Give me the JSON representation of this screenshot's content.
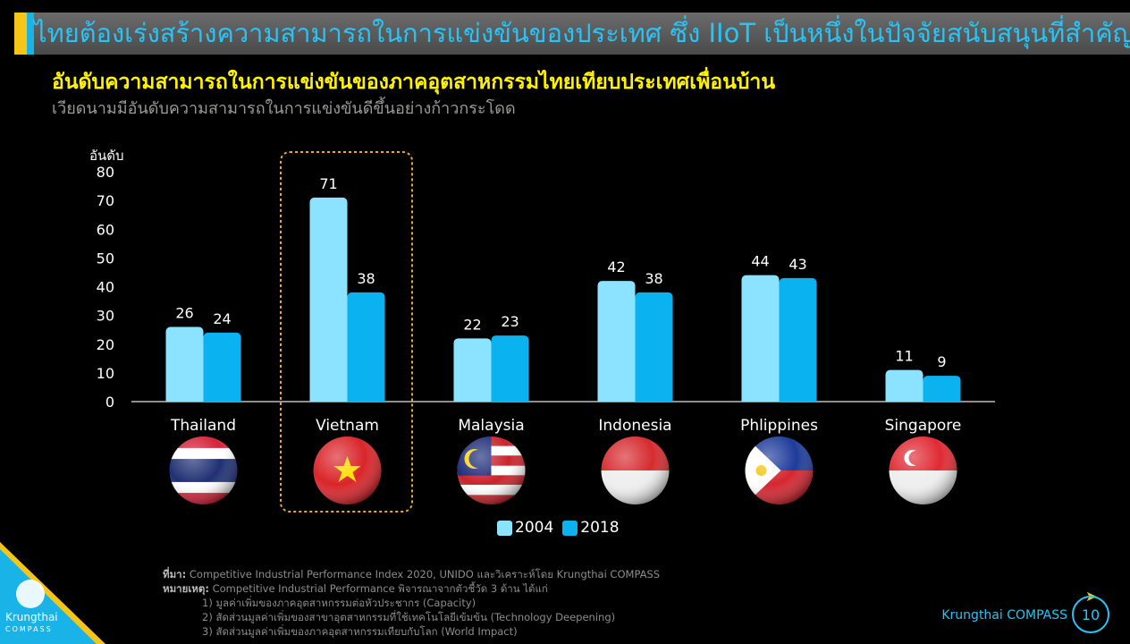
{
  "header": {
    "title": "ไทยต้องเร่งสร้างความสามารถในการแข่งขันของประเทศ ซึ่ง IIoT เป็นหนึ่งในปัจจัยสนับสนุนที่สำคัญ",
    "subtitle": "อันดับความสามารถในการแข่งขันของภาคอุตสาหกรรมไทยเทียบประเทศเพื่อนบ้าน",
    "subtitle2": "เวียดนามมีอันดับความสามารถในการแข่งขันดีขึ้นอย่างก้าวกระโดด"
  },
  "chart_data": {
    "type": "bar",
    "ylabel": "อันดับ",
    "ylim": [
      0,
      80
    ],
    "yticks": [
      0,
      10,
      20,
      30,
      40,
      50,
      60,
      70,
      80
    ],
    "categories": [
      "Thailand",
      "Vietnam",
      "Malaysia",
      "Indonesia",
      "Phlippines",
      "Singapore"
    ],
    "series": [
      {
        "name": "2004",
        "values": [
          26,
          71,
          22,
          42,
          44,
          11
        ],
        "color": "#8be3ff"
      },
      {
        "name": "2018",
        "values": [
          24,
          38,
          23,
          38,
          43,
          9
        ],
        "color": "#0ab2ef"
      }
    ],
    "highlight": "Vietnam",
    "highlight_color": "#e5a93a",
    "legend_position": "bottom"
  },
  "notes": {
    "source_label": "ที่มา:",
    "source_text": "Competitive Industrial Performance Index 2020, UNIDO และวิเคราะห์โดย Krungthai COMPASS",
    "remark_label": "หมายเหตุ:",
    "remark_text": "Competitive Industrial Performance พิจารณาจากตัวชี้วัด 3 ด้าน ได้แก่",
    "items": [
      "1) มูลค่าเพิ่มของภาคอุตสาหกรรมต่อหัวประชากร (Capacity)",
      "2) สัดส่วนมูลค่าเพิ่มของสาขาอุตสาหกรรมที่ใช้เทคโนโลยีเข้มข้น (Technology Deepening)",
      "3) สัดส่วนมูลค่าเพิ่มของภาคอุตสาหกรรมเทียบกับโลก (World Impact)"
    ]
  },
  "footer": {
    "brand": "Krungthai COMPASS",
    "page": "10",
    "logo_line1": "Krungthai",
    "logo_line2": "COMPASS"
  }
}
